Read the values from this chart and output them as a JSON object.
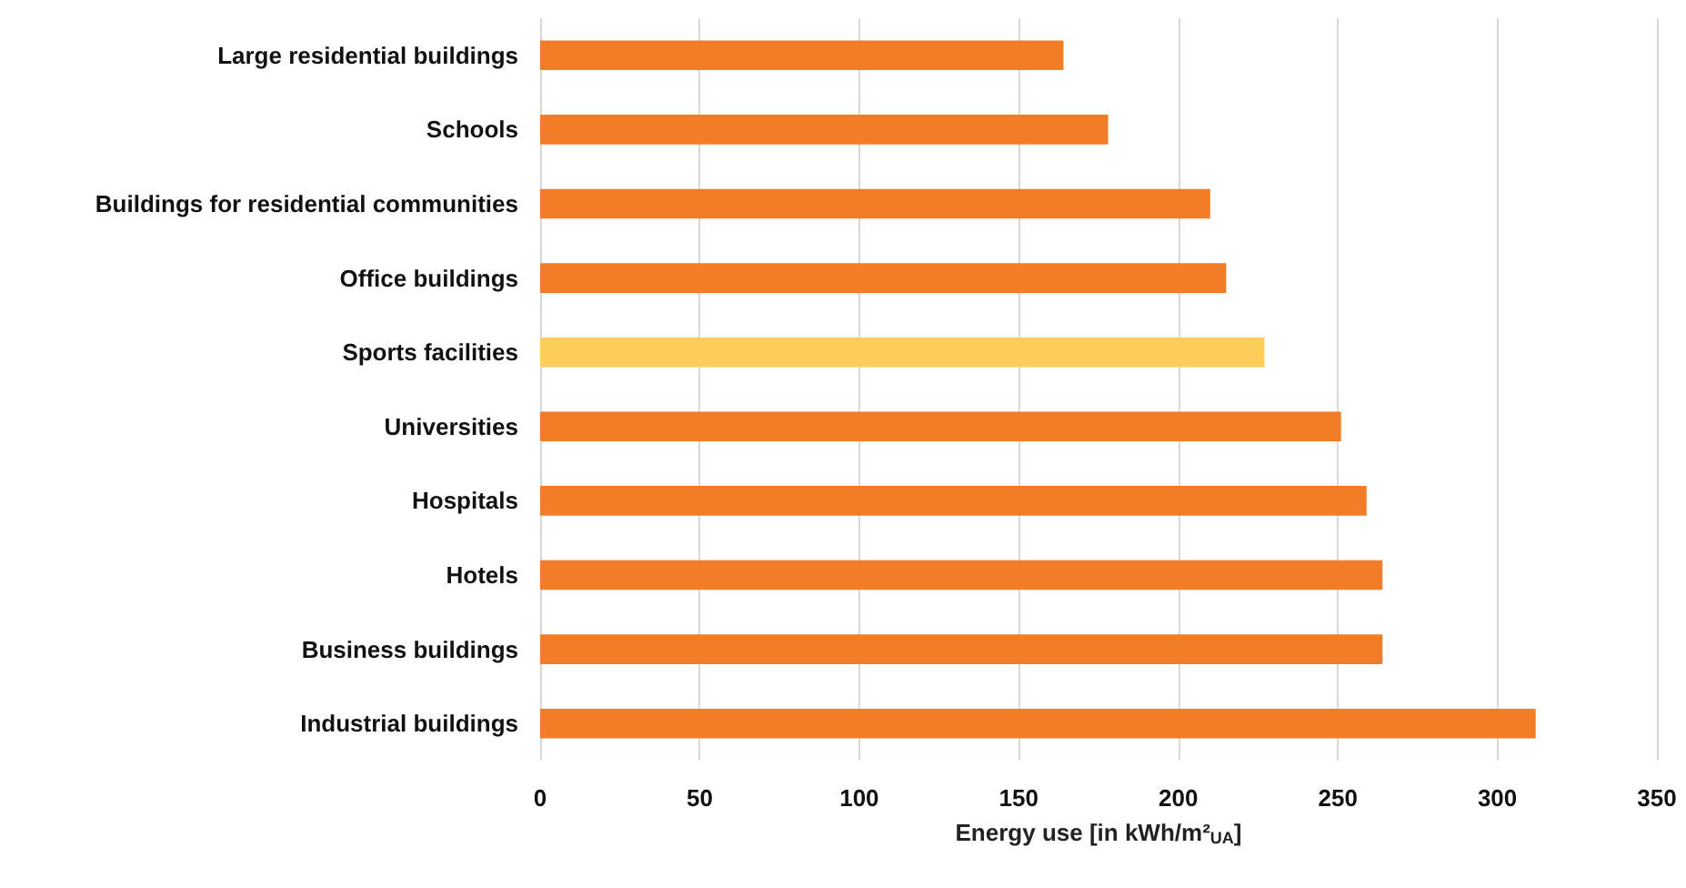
{
  "chart_data": {
    "type": "bar",
    "orientation": "horizontal",
    "xlabel": "Energy use [in kWh/m²$_{UA}$]",
    "categories": [
      "Large residential buildings",
      "Schools",
      "Buildings for residential communities",
      "Office buildings",
      "Sports facilities",
      "Universities",
      "Hospitals",
      "Hotels",
      "Business buildings",
      "Industrial buildings"
    ],
    "values": [
      164,
      178,
      210,
      215,
      227,
      251,
      259,
      264,
      264,
      312
    ],
    "colors": [
      "#f37c26",
      "#f37c26",
      "#f37c26",
      "#f37c26",
      "#fdce5a",
      "#f37c26",
      "#f37c26",
      "#f37c26",
      "#f37c26",
      "#f37c26"
    ],
    "xlim": [
      0,
      350
    ],
    "xticks": [
      0,
      50,
      100,
      150,
      200,
      250,
      300,
      350
    ],
    "grid": "x"
  }
}
